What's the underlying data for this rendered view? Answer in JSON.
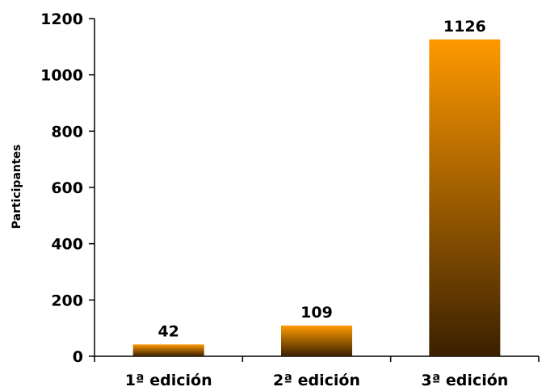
{
  "chart_data": {
    "type": "bar",
    "title": "",
    "xlabel": "",
    "ylabel": "Participantes",
    "ylim": [
      0,
      1200
    ],
    "yticks": [
      0,
      200,
      400,
      600,
      800,
      1000,
      1200
    ],
    "categories": [
      "1ª edición",
      "2ª edición",
      "3ª edición"
    ],
    "values": [
      42,
      109,
      1126
    ],
    "data_labels": [
      "42",
      "109",
      "1126"
    ],
    "grid": false,
    "legend": "none",
    "colors": {
      "bar_top": "#FF9900",
      "bar_bottom": "#3A2000",
      "axis": "#000000"
    }
  }
}
